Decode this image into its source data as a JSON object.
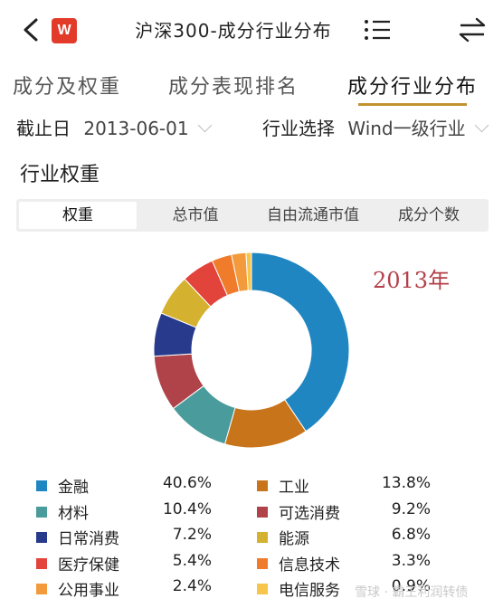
{
  "header": {
    "title": "沪深300-成分行业分布",
    "logo_text": "W",
    "icons": [
      "back-icon",
      "list-icon",
      "swap-icon"
    ]
  },
  "tabs": [
    {
      "label": "成分及权重",
      "active": false
    },
    {
      "label": "成分表现排名",
      "active": false
    },
    {
      "label": "成分行业分布",
      "active": true
    }
  ],
  "filters": {
    "date_label": "截止日",
    "date_value": "2013-06-01",
    "industry_label": "行业选择",
    "industry_value": "Wind一级行业"
  },
  "section_title": "行业权重",
  "segments": [
    {
      "label": "权重",
      "active": true
    },
    {
      "label": "总市值",
      "active": false
    },
    {
      "label": "自由流通市值",
      "active": false
    },
    {
      "label": "成分个数",
      "active": false
    }
  ],
  "annotation": "2013年",
  "colors": {
    "accent": "#c2922f",
    "annotation": "#b3404a"
  },
  "chart_data": {
    "type": "pie",
    "categories": [
      "金融",
      "工业",
      "材料",
      "可选消费",
      "日常消费",
      "能源",
      "医疗保健",
      "信息技术",
      "公用事业",
      "电信服务"
    ],
    "values": [
      40.6,
      13.8,
      10.4,
      9.2,
      7.2,
      6.8,
      5.4,
      3.3,
      2.4,
      0.9
    ],
    "value_labels": [
      "40.6%",
      "13.8%",
      "10.4%",
      "9.2%",
      "7.2%",
      "6.8%",
      "5.4%",
      "3.3%",
      "2.4%",
      "0.9%"
    ],
    "colors": [
      "#1f86c2",
      "#c8741a",
      "#4a9b9b",
      "#b0434a",
      "#273a8c",
      "#d4b12f",
      "#e2433a",
      "#ef7b2b",
      "#f29a3c",
      "#f6c54a"
    ],
    "donut": true,
    "legend_position": "bottom"
  },
  "watermark": "雪球 · 霸王利润转债"
}
